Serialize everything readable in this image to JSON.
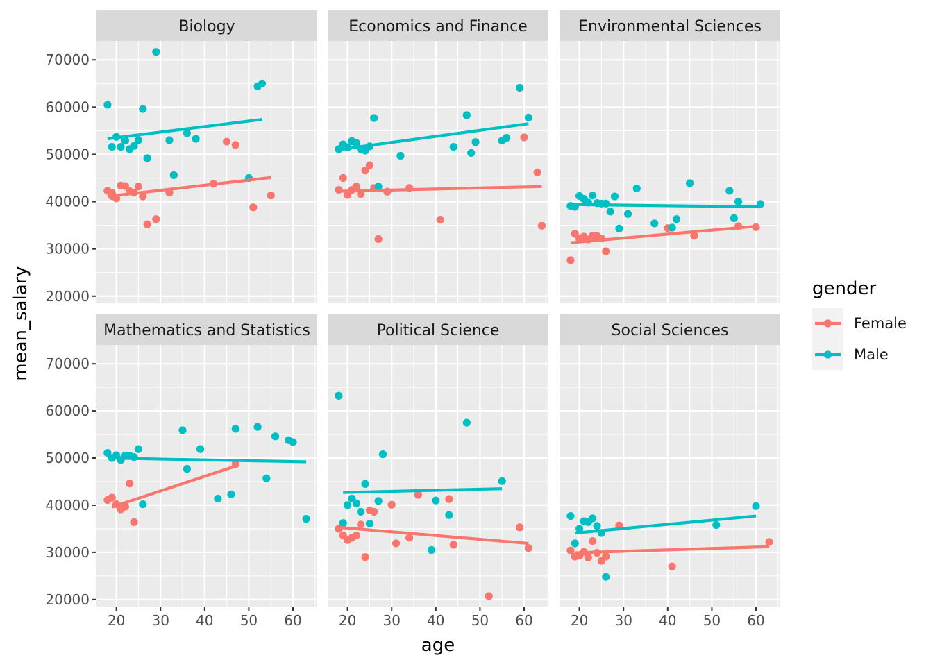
{
  "chart_data": {
    "type": "scatter",
    "facet_by": "field",
    "xlabel": "age",
    "ylabel": "mean_salary",
    "xlim": [
      15.5,
      65.5
    ],
    "ylim": [
      18500,
      74000
    ],
    "x_ticks": [
      20,
      30,
      40,
      50,
      60
    ],
    "y_ticks": [
      20000,
      30000,
      40000,
      50000,
      60000,
      70000
    ],
    "grid": true,
    "legend": {
      "title": "gender",
      "placement": "right",
      "entries": [
        {
          "label": "Female",
          "color": "#F8766D"
        },
        {
          "label": "Male",
          "color": "#00BFC4"
        }
      ]
    },
    "facets": [
      {
        "title": "Biology",
        "series": [
          {
            "gender": "Female",
            "color": "#F8766D",
            "points": [
              [
                18,
                42300
              ],
              [
                19,
                41900
              ],
              [
                19,
                41200
              ],
              [
                20,
                40700
              ],
              [
                21,
                43400
              ],
              [
                22,
                43300
              ],
              [
                23,
                42200
              ],
              [
                24,
                41900
              ],
              [
                25,
                43200
              ],
              [
                26,
                41100
              ],
              [
                27,
                35200
              ],
              [
                29,
                36300
              ],
              [
                32,
                41900
              ],
              [
                42,
                43800
              ],
              [
                45,
                52700
              ],
              [
                47,
                52000
              ],
              [
                51,
                38800
              ],
              [
                55,
                41300
              ]
            ],
            "trend": [
              [
                18,
                41100
              ],
              [
                55,
                45100
              ]
            ]
          },
          {
            "gender": "Male",
            "color": "#00BFC4",
            "points": [
              [
                18,
                60500
              ],
              [
                19,
                51600
              ],
              [
                20,
                53700
              ],
              [
                21,
                51600
              ],
              [
                22,
                52900
              ],
              [
                23,
                51100
              ],
              [
                24,
                51800
              ],
              [
                25,
                53000
              ],
              [
                26,
                59600
              ],
              [
                27,
                49200
              ],
              [
                29,
                71700
              ],
              [
                32,
                53000
              ],
              [
                33,
                45600
              ],
              [
                36,
                54500
              ],
              [
                38,
                53300
              ],
              [
                50,
                45000
              ],
              [
                52,
                64400
              ],
              [
                53,
                65000
              ]
            ],
            "trend": [
              [
                18,
                53300
              ],
              [
                53,
                57400
              ]
            ]
          }
        ]
      },
      {
        "title": "Economics and Finance",
        "series": [
          {
            "gender": "Female",
            "color": "#F8766D",
            "points": [
              [
                18,
                42500
              ],
              [
                19,
                45000
              ],
              [
                20,
                41400
              ],
              [
                21,
                42500
              ],
              [
                22,
                43200
              ],
              [
                23,
                41600
              ],
              [
                24,
                46600
              ],
              [
                25,
                47700
              ],
              [
                26,
                42900
              ],
              [
                27,
                32100
              ],
              [
                29,
                42100
              ],
              [
                34,
                42900
              ],
              [
                41,
                36200
              ],
              [
                60,
                53600
              ],
              [
                63,
                46200
              ],
              [
                64,
                34900
              ]
            ],
            "trend": [
              [
                18,
                42200
              ],
              [
                64,
                43200
              ]
            ]
          },
          {
            "gender": "Male",
            "color": "#00BFC4",
            "points": [
              [
                18,
                51100
              ],
              [
                19,
                52100
              ],
              [
                20,
                51500
              ],
              [
                21,
                52800
              ],
              [
                22,
                52400
              ],
              [
                23,
                51100
              ],
              [
                24,
                50800
              ],
              [
                25,
                51700
              ],
              [
                26,
                57700
              ],
              [
                27,
                43200
              ],
              [
                32,
                49700
              ],
              [
                44,
                51600
              ],
              [
                47,
                58300
              ],
              [
                48,
                50300
              ],
              [
                49,
                52600
              ],
              [
                55,
                52900
              ],
              [
                56,
                53500
              ],
              [
                59,
                64100
              ],
              [
                61,
                57800
              ]
            ],
            "trend": [
              [
                18,
                51000
              ],
              [
                61,
                56500
              ]
            ]
          }
        ]
      },
      {
        "title": "Environmental Sciences",
        "series": [
          {
            "gender": "Female",
            "color": "#F8766D",
            "points": [
              [
                18,
                27600
              ],
              [
                19,
                33200
              ],
              [
                20,
                32200
              ],
              [
                21,
                32600
              ],
              [
                22,
                32000
              ],
              [
                23,
                32800
              ],
              [
                24,
                32700
              ],
              [
                25,
                32200
              ],
              [
                26,
                29500
              ],
              [
                40,
                34400
              ],
              [
                46,
                32800
              ],
              [
                56,
                34800
              ],
              [
                60,
                34600
              ]
            ],
            "trend": [
              [
                18,
                31300
              ],
              [
                60,
                34800
              ]
            ]
          },
          {
            "gender": "Male",
            "color": "#00BFC4",
            "points": [
              [
                18,
                39100
              ],
              [
                19,
                38900
              ],
              [
                20,
                41200
              ],
              [
                21,
                40600
              ],
              [
                22,
                39800
              ],
              [
                23,
                41300
              ],
              [
                24,
                39700
              ],
              [
                25,
                39600
              ],
              [
                26,
                39600
              ],
              [
                27,
                37900
              ],
              [
                28,
                41100
              ],
              [
                29,
                34300
              ],
              [
                31,
                37400
              ],
              [
                33,
                42800
              ],
              [
                37,
                35400
              ],
              [
                41,
                34500
              ],
              [
                42,
                36300
              ],
              [
                45,
                43900
              ],
              [
                54,
                42300
              ],
              [
                55,
                36500
              ],
              [
                56,
                40000
              ],
              [
                61,
                39500
              ]
            ],
            "trend": [
              [
                18,
                39400
              ],
              [
                61,
                38900
              ]
            ]
          }
        ]
      },
      {
        "title": "Mathematics and Statistics",
        "series": [
          {
            "gender": "Female",
            "color": "#F8766D",
            "points": [
              [
                18,
                41100
              ],
              [
                19,
                41600
              ],
              [
                20,
                40200
              ],
              [
                21,
                39100
              ],
              [
                22,
                39700
              ],
              [
                23,
                44600
              ],
              [
                24,
                36400
              ],
              [
                47,
                48700
              ]
            ],
            "trend": [
              [
                19,
                39600
              ],
              [
                47,
                48300
              ]
            ]
          },
          {
            "gender": "Male",
            "color": "#00BFC4",
            "points": [
              [
                18,
                51100
              ],
              [
                19,
                50000
              ],
              [
                20,
                50600
              ],
              [
                21,
                49600
              ],
              [
                22,
                50500
              ],
              [
                23,
                50500
              ],
              [
                24,
                50200
              ],
              [
                25,
                51900
              ],
              [
                26,
                40200
              ],
              [
                35,
                55900
              ],
              [
                36,
                47700
              ],
              [
                39,
                51900
              ],
              [
                43,
                41400
              ],
              [
                46,
                42300
              ],
              [
                47,
                56200
              ],
              [
                52,
                56600
              ],
              [
                54,
                45700
              ],
              [
                56,
                54600
              ],
              [
                59,
                53800
              ],
              [
                60,
                53400
              ],
              [
                63,
                37100
              ]
            ],
            "trend": [
              [
                18,
                50000
              ],
              [
                63,
                49200
              ]
            ]
          }
        ]
      },
      {
        "title": "Political Science",
        "series": [
          {
            "gender": "Female",
            "color": "#F8766D",
            "points": [
              [
                18,
                35000
              ],
              [
                19,
                33600
              ],
              [
                20,
                32600
              ],
              [
                21,
                33100
              ],
              [
                22,
                33600
              ],
              [
                23,
                35900
              ],
              [
                24,
                29000
              ],
              [
                25,
                38900
              ],
              [
                26,
                38600
              ],
              [
                30,
                40100
              ],
              [
                31,
                31900
              ],
              [
                34,
                33100
              ],
              [
                36,
                42200
              ],
              [
                43,
                41300
              ],
              [
                44,
                31600
              ],
              [
                52,
                20700
              ],
              [
                59,
                35300
              ],
              [
                61,
                30900
              ]
            ],
            "trend": [
              [
                18,
                35300
              ],
              [
                61,
                31900
              ]
            ]
          },
          {
            "gender": "Male",
            "color": "#00BFC4",
            "points": [
              [
                18,
                63200
              ],
              [
                19,
                36200
              ],
              [
                20,
                40000
              ],
              [
                21,
                41400
              ],
              [
                22,
                40400
              ],
              [
                23,
                38600
              ],
              [
                24,
                44500
              ],
              [
                25,
                36100
              ],
              [
                27,
                40900
              ],
              [
                28,
                50800
              ],
              [
                39,
                30500
              ],
              [
                40,
                41000
              ],
              [
                43,
                37900
              ],
              [
                47,
                57500
              ],
              [
                55,
                45100
              ]
            ],
            "trend": [
              [
                19,
                42700
              ],
              [
                55,
                43500
              ]
            ]
          }
        ]
      },
      {
        "title": "Social Sciences",
        "series": [
          {
            "gender": "Female",
            "color": "#F8766D",
            "points": [
              [
                18,
                30400
              ],
              [
                19,
                29100
              ],
              [
                20,
                29300
              ],
              [
                21,
                30100
              ],
              [
                22,
                28900
              ],
              [
                23,
                32400
              ],
              [
                24,
                29900
              ],
              [
                25,
                28200
              ],
              [
                26,
                29100
              ],
              [
                29,
                35700
              ],
              [
                41,
                27000
              ],
              [
                63,
                32200
              ]
            ],
            "trend": [
              [
                19,
                29900
              ],
              [
                63,
                31200
              ]
            ]
          },
          {
            "gender": "Male",
            "color": "#00BFC4",
            "points": [
              [
                18,
                37700
              ],
              [
                19,
                31900
              ],
              [
                20,
                35000
              ],
              [
                21,
                36600
              ],
              [
                22,
                36400
              ],
              [
                23,
                37200
              ],
              [
                24,
                35600
              ],
              [
                25,
                34100
              ],
              [
                26,
                24800
              ],
              [
                51,
                35800
              ],
              [
                60,
                39800
              ]
            ],
            "trend": [
              [
                19,
                34100
              ],
              [
                60,
                37700
              ]
            ]
          }
        ]
      }
    ]
  }
}
